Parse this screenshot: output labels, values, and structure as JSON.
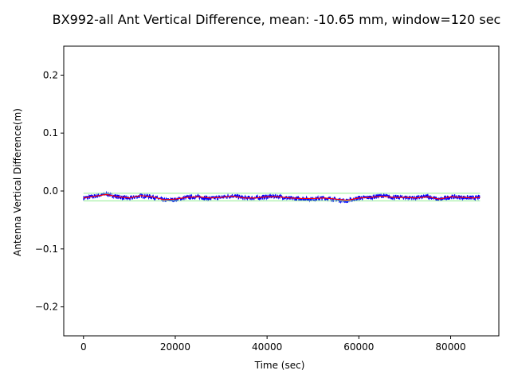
{
  "chart_data": {
    "type": "line",
    "title": "BX992-all Ant Vertical Difference, mean: -10.65 mm, window=120 sec",
    "xlabel": "Time (sec)",
    "ylabel": "Antenna Vertical Difference(m)",
    "xlim": [
      -4300,
      90500
    ],
    "ylim": [
      -0.25,
      0.25
    ],
    "xticks": [
      0,
      20000,
      40000,
      60000,
      80000
    ],
    "xtick_labels": [
      "0",
      "20000",
      "40000",
      "60000",
      "80000"
    ],
    "yticks": [
      -0.2,
      -0.1,
      0.0,
      0.1,
      0.2
    ],
    "ytick_labels": [
      "−0.2",
      "−0.1",
      "0.0",
      "0.1",
      "0.2"
    ],
    "grid": false,
    "series": [
      {
        "color": "#0000ff",
        "style": "raw",
        "x_range": [
          0,
          86400
        ],
        "profile_x": [
          0,
          2500,
          5000,
          7500,
          10000,
          12500,
          15000,
          17500,
          20000,
          22500,
          25000,
          27500,
          30000,
          32500,
          35000,
          37500,
          40000,
          42500,
          45000,
          47500,
          50000,
          52500,
          55000,
          57500,
          60000,
          62500,
          65000,
          67500,
          70000,
          72500,
          75000,
          77500,
          80000,
          82500,
          85000,
          86400
        ],
        "profile_y": [
          -0.012,
          -0.009,
          -0.005,
          -0.01,
          -0.013,
          -0.008,
          -0.01,
          -0.016,
          -0.015,
          -0.011,
          -0.01,
          -0.013,
          -0.011,
          -0.008,
          -0.012,
          -0.012,
          -0.01,
          -0.009,
          -0.013,
          -0.013,
          -0.014,
          -0.012,
          -0.015,
          -0.017,
          -0.012,
          -0.011,
          -0.008,
          -0.011,
          -0.011,
          -0.012,
          -0.009,
          -0.015,
          -0.01,
          -0.011,
          -0.012,
          -0.011
        ],
        "noise_amplitude": 0.004
      },
      {
        "color": "#ff0000",
        "style": "smoothed",
        "x": [
          0,
          2500,
          5000,
          7500,
          10000,
          12500,
          15000,
          17500,
          20000,
          22500,
          25000,
          27500,
          30000,
          32500,
          35000,
          37500,
          40000,
          42500,
          45000,
          47500,
          50000,
          52500,
          55000,
          57500,
          60000,
          62500,
          65000,
          67500,
          70000,
          72500,
          75000,
          77500,
          80000,
          82500,
          85000,
          86400
        ],
        "y": [
          -0.012,
          -0.009,
          -0.006,
          -0.01,
          -0.012,
          -0.008,
          -0.01,
          -0.015,
          -0.014,
          -0.011,
          -0.01,
          -0.012,
          -0.011,
          -0.009,
          -0.012,
          -0.012,
          -0.01,
          -0.01,
          -0.012,
          -0.013,
          -0.013,
          -0.012,
          -0.014,
          -0.016,
          -0.012,
          -0.011,
          -0.009,
          -0.011,
          -0.011,
          -0.012,
          -0.01,
          -0.014,
          -0.01,
          -0.011,
          -0.012,
          -0.011
        ]
      },
      {
        "color": "#90ee90",
        "style": "band-upper",
        "x": [
          0,
          86400
        ],
        "y": [
          -0.004,
          -0.004
        ]
      },
      {
        "color": "#90ee90",
        "style": "band-lower",
        "x": [
          0,
          86400
        ],
        "y": [
          -0.017,
          -0.017
        ]
      }
    ]
  }
}
